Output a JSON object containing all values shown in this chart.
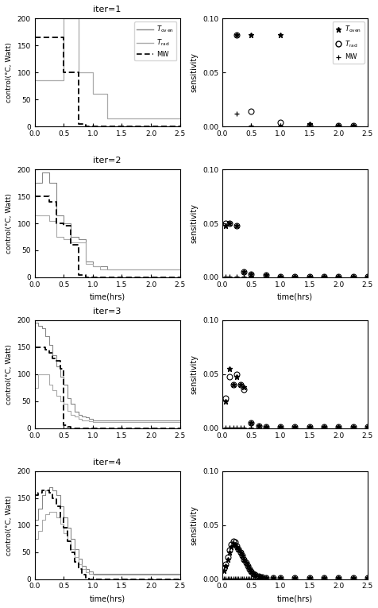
{
  "iter_titles": [
    "iter=1",
    "iter=2",
    "iter=3",
    "iter=4"
  ],
  "xlim_control": [
    0,
    2.5
  ],
  "ylim_control": [
    0,
    200
  ],
  "xlim_sens": [
    0,
    2.5
  ],
  "ylim_sens": [
    0,
    0.1
  ],
  "xlabel": "time(hrs)",
  "ylabel_control": "control(°C, Watt)",
  "ylabel_sens": "sensitivity",
  "yticks_sens": [
    0,
    0.05,
    0.1
  ],
  "yticks_control": [
    0,
    50,
    100,
    150,
    200
  ],
  "xticks": [
    0,
    0.5,
    1,
    1.5,
    2,
    2.5
  ],
  "iter1_toven_x": [
    0,
    0.5,
    0.5,
    0.75,
    0.75,
    1.0,
    1.0,
    1.25,
    1.25,
    2.5
  ],
  "iter1_toven_y": [
    85,
    85,
    200,
    200,
    100,
    100,
    60,
    60,
    15,
    15
  ],
  "iter1_trad_x": [
    0,
    0.5,
    0.5,
    0.75,
    0.75,
    1.0,
    1.0,
    1.25,
    1.25,
    2.5
  ],
  "iter1_trad_y": [
    85,
    85,
    200,
    200,
    100,
    100,
    60,
    60,
    15,
    15
  ],
  "iter1_mw_x": [
    0,
    0.5,
    0.5,
    0.75,
    0.75,
    0.875,
    0.875,
    2.5
  ],
  "iter1_mw_y": [
    165,
    165,
    100,
    100,
    5,
    5,
    0,
    0
  ],
  "iter2_toven_x": [
    0,
    0.125,
    0.125,
    0.25,
    0.25,
    0.375,
    0.375,
    0.5,
    0.5,
    0.625,
    0.625,
    0.75,
    0.75,
    0.875,
    0.875,
    1.0,
    1.0,
    1.125,
    1.125,
    1.25,
    1.25,
    2.5
  ],
  "iter2_toven_y": [
    175,
    175,
    195,
    195,
    175,
    175,
    115,
    115,
    100,
    100,
    75,
    75,
    70,
    70,
    30,
    30,
    20,
    20,
    20,
    20,
    15,
    15
  ],
  "iter2_trad_x": [
    0,
    0.125,
    0.125,
    0.25,
    0.25,
    0.375,
    0.375,
    0.5,
    0.5,
    0.625,
    0.625,
    0.75,
    0.75,
    0.875,
    0.875,
    1.0,
    1.0,
    1.125,
    1.125,
    1.25,
    1.25,
    2.5
  ],
  "iter2_trad_y": [
    115,
    115,
    115,
    115,
    105,
    105,
    75,
    75,
    70,
    70,
    65,
    65,
    65,
    65,
    25,
    25,
    20,
    20,
    15,
    15,
    15,
    15
  ],
  "iter2_mw_x": [
    0,
    0.125,
    0.125,
    0.25,
    0.25,
    0.375,
    0.375,
    0.5,
    0.5,
    0.625,
    0.625,
    0.75,
    0.75,
    0.875,
    0.875,
    2.5
  ],
  "iter2_mw_y": [
    150,
    150,
    150,
    150,
    140,
    140,
    100,
    100,
    95,
    95,
    60,
    60,
    5,
    5,
    0,
    0
  ],
  "iter3_toven_x": [
    0,
    0.0625,
    0.0625,
    0.125,
    0.125,
    0.1875,
    0.1875,
    0.25,
    0.25,
    0.3125,
    0.3125,
    0.375,
    0.375,
    0.4375,
    0.4375,
    0.5,
    0.5,
    0.5625,
    0.5625,
    0.625,
    0.625,
    0.6875,
    0.6875,
    0.75,
    0.75,
    0.8125,
    0.8125,
    0.875,
    0.875,
    0.9375,
    0.9375,
    1.0,
    1.0,
    2.5
  ],
  "iter3_toven_y": [
    195,
    195,
    190,
    190,
    185,
    185,
    170,
    170,
    155,
    155,
    135,
    135,
    115,
    115,
    95,
    95,
    80,
    80,
    55,
    55,
    45,
    45,
    30,
    30,
    25,
    25,
    22,
    22,
    20,
    20,
    18,
    18,
    15,
    15
  ],
  "iter3_trad_x": [
    0,
    0.0625,
    0.0625,
    0.125,
    0.125,
    0.1875,
    0.1875,
    0.25,
    0.25,
    0.3125,
    0.3125,
    0.375,
    0.375,
    0.4375,
    0.4375,
    0.5,
    0.5,
    0.5625,
    0.5625,
    0.625,
    0.625,
    0.6875,
    0.6875,
    0.75,
    0.75,
    0.8125,
    0.8125,
    0.875,
    0.875,
    0.9375,
    0.9375,
    1.0,
    1.0,
    2.5
  ],
  "iter3_trad_y": [
    75,
    75,
    100,
    100,
    100,
    100,
    100,
    100,
    80,
    80,
    70,
    70,
    60,
    60,
    50,
    50,
    45,
    45,
    32,
    32,
    25,
    25,
    22,
    22,
    18,
    18,
    15,
    15,
    14,
    14,
    13,
    13,
    12,
    12
  ],
  "iter3_mw_x": [
    0,
    0.0625,
    0.0625,
    0.125,
    0.125,
    0.1875,
    0.1875,
    0.25,
    0.25,
    0.3125,
    0.3125,
    0.375,
    0.375,
    0.4375,
    0.4375,
    0.5,
    0.5,
    0.5625,
    0.5625,
    0.625,
    0.625,
    0.6875,
    0.6875,
    0.75,
    0.75,
    0.8125,
    0.8125,
    2.5
  ],
  "iter3_mw_y": [
    150,
    150,
    150,
    150,
    150,
    150,
    145,
    145,
    140,
    140,
    130,
    130,
    125,
    125,
    110,
    110,
    5,
    5,
    2,
    2,
    0,
    0,
    0,
    0,
    0,
    0,
    0,
    0
  ],
  "iter4_toven_x": [
    0,
    0.0625,
    0.0625,
    0.125,
    0.125,
    0.1875,
    0.1875,
    0.25,
    0.25,
    0.3125,
    0.3125,
    0.375,
    0.375,
    0.4375,
    0.4375,
    0.5,
    0.5,
    0.5625,
    0.5625,
    0.625,
    0.625,
    0.6875,
    0.6875,
    0.75,
    0.75,
    0.8125,
    0.8125,
    0.875,
    0.875,
    0.9375,
    0.9375,
    1.0,
    1.0,
    2.5
  ],
  "iter4_toven_y": [
    110,
    110,
    130,
    130,
    155,
    155,
    165,
    165,
    170,
    170,
    165,
    165,
    155,
    155,
    135,
    135,
    115,
    115,
    95,
    95,
    75,
    75,
    55,
    55,
    38,
    38,
    25,
    25,
    18,
    18,
    14,
    14,
    10,
    10
  ],
  "iter4_trad_x": [
    0,
    0.0625,
    0.0625,
    0.125,
    0.125,
    0.1875,
    0.1875,
    0.25,
    0.25,
    0.3125,
    0.3125,
    0.375,
    0.375,
    0.4375,
    0.4375,
    0.5,
    0.5,
    0.5625,
    0.5625,
    0.625,
    0.625,
    0.6875,
    0.6875,
    0.75,
    0.75,
    0.8125,
    0.8125,
    0.875,
    0.875,
    0.9375,
    0.9375,
    1.0,
    1.0,
    2.5
  ],
  "iter4_trad_y": [
    75,
    75,
    90,
    90,
    110,
    110,
    120,
    120,
    125,
    125,
    125,
    125,
    115,
    115,
    102,
    102,
    85,
    85,
    70,
    70,
    55,
    55,
    40,
    40,
    28,
    28,
    18,
    18,
    12,
    12,
    10,
    10,
    8,
    8
  ],
  "iter4_mw_x": [
    0,
    0.0625,
    0.0625,
    0.125,
    0.125,
    0.1875,
    0.1875,
    0.25,
    0.25,
    0.3125,
    0.3125,
    0.375,
    0.375,
    0.4375,
    0.4375,
    0.5,
    0.5,
    0.5625,
    0.5625,
    0.625,
    0.625,
    0.6875,
    0.6875,
    0.75,
    0.75,
    0.8125,
    0.8125,
    0.875,
    0.875,
    0.9375,
    0.9375,
    1.0,
    1.0,
    2.5
  ],
  "iter4_mw_y": [
    155,
    155,
    160,
    160,
    165,
    165,
    165,
    165,
    160,
    160,
    150,
    150,
    135,
    135,
    115,
    115,
    95,
    95,
    70,
    70,
    50,
    50,
    32,
    32,
    18,
    18,
    8,
    8,
    2,
    2,
    0,
    0,
    0,
    0
  ],
  "sens1_toven_x": [
    0.25,
    0.5,
    1.0,
    1.5,
    2.0,
    2.25
  ],
  "sens1_toven_y": [
    0.085,
    0.085,
    0.085,
    0.002,
    0.001,
    0.001
  ],
  "sens1_trad_x": [
    0.25,
    0.5,
    1.0,
    1.5,
    2.0,
    2.25
  ],
  "sens1_trad_y": [
    0.085,
    0.014,
    0.004,
    0.001,
    0.001,
    0.001
  ],
  "sens1_mw_x": [
    0.25,
    0.5,
    1.0,
    1.5,
    2.0,
    2.25
  ],
  "sens1_mw_y": [
    0.012,
    0.001,
    0.001,
    0.0005,
    0.0002,
    0.0001
  ],
  "sens2_toven_x": [
    0.0625,
    0.125,
    0.25,
    0.375,
    0.5,
    0.75,
    1.0,
    1.25,
    1.5,
    1.75,
    2.0,
    2.25,
    2.5
  ],
  "sens2_toven_y": [
    0.048,
    0.05,
    0.048,
    0.005,
    0.003,
    0.002,
    0.001,
    0.001,
    0.001,
    0.001,
    0.001,
    0.001,
    0.001
  ],
  "sens2_trad_x": [
    0.0625,
    0.125,
    0.25,
    0.375,
    0.5,
    0.75,
    1.0,
    1.25,
    1.5,
    1.75,
    2.0,
    2.25,
    2.5
  ],
  "sens2_trad_y": [
    0.05,
    0.05,
    0.048,
    0.005,
    0.003,
    0.002,
    0.001,
    0.001,
    0.001,
    0.001,
    0.001,
    0.001,
    0.001
  ],
  "sens2_mw_x": [
    0.0625,
    0.125,
    0.25,
    0.375,
    0.5,
    0.75,
    1.0,
    1.25,
    1.5,
    1.75,
    2.0,
    2.25,
    2.5
  ],
  "sens2_mw_y": [
    0.001,
    0.001,
    0.001,
    0.001,
    0.001,
    0.001,
    0.001,
    0.001,
    0.001,
    0.001,
    0.001,
    0.001,
    0.001
  ],
  "sens3_toven_x": [
    0.0625,
    0.125,
    0.1875,
    0.25,
    0.3125,
    0.375,
    0.5,
    0.625,
    0.75,
    1.0,
    1.25,
    1.5,
    1.75,
    2.0,
    2.25,
    2.5
  ],
  "sens3_toven_y": [
    0.025,
    0.055,
    0.04,
    0.048,
    0.04,
    0.038,
    0.005,
    0.002,
    0.001,
    0.001,
    0.001,
    0.001,
    0.001,
    0.001,
    0.001,
    0.001
  ],
  "sens3_trad_x": [
    0.0625,
    0.125,
    0.1875,
    0.25,
    0.3125,
    0.375,
    0.5,
    0.625,
    0.75,
    1.0,
    1.25,
    1.5,
    1.75,
    2.0,
    2.25,
    2.5
  ],
  "sens3_trad_y": [
    0.028,
    0.048,
    0.04,
    0.05,
    0.04,
    0.036,
    0.005,
    0.002,
    0.001,
    0.001,
    0.001,
    0.001,
    0.001,
    0.001,
    0.001,
    0.001
  ],
  "sens3_mw_x": [
    0.0625,
    0.125,
    0.1875,
    0.25,
    0.3125,
    0.375,
    0.5,
    0.625,
    0.75,
    1.0,
    1.25,
    1.5,
    1.75,
    2.0,
    2.25,
    2.5
  ],
  "sens3_mw_y": [
    0.0005,
    0.0005,
    0.0005,
    0.0005,
    0.0005,
    0.0005,
    0.0005,
    0.0005,
    0.0005,
    0.0005,
    0.0005,
    0.0005,
    0.0005,
    0.0005,
    0.0005,
    0.0005
  ],
  "sens4_toven_x": [
    0.03125,
    0.0625,
    0.09375,
    0.125,
    0.15625,
    0.1875,
    0.21875,
    0.25,
    0.28125,
    0.3125,
    0.34375,
    0.375,
    0.40625,
    0.4375,
    0.46875,
    0.5,
    0.53125,
    0.5625,
    0.625,
    0.6875,
    0.75,
    0.875,
    1.0,
    1.25,
    1.5,
    1.75,
    2.0,
    2.25,
    2.5
  ],
  "sens4_toven_y": [
    0.008,
    0.012,
    0.018,
    0.025,
    0.03,
    0.033,
    0.032,
    0.03,
    0.028,
    0.025,
    0.022,
    0.018,
    0.015,
    0.012,
    0.009,
    0.007,
    0.005,
    0.004,
    0.003,
    0.002,
    0.001,
    0.001,
    0.001,
    0.001,
    0.001,
    0.001,
    0.001,
    0.001,
    0.001
  ],
  "sens4_trad_x": [
    0.03125,
    0.0625,
    0.09375,
    0.125,
    0.15625,
    0.1875,
    0.21875,
    0.25,
    0.28125,
    0.3125,
    0.34375,
    0.375,
    0.40625,
    0.4375,
    0.46875,
    0.5,
    0.53125,
    0.5625,
    0.625,
    0.6875,
    0.75,
    0.875,
    1.0,
    1.25,
    1.5,
    1.75,
    2.0,
    2.25,
    2.5
  ],
  "sens4_trad_y": [
    0.01,
    0.014,
    0.02,
    0.027,
    0.032,
    0.035,
    0.034,
    0.031,
    0.028,
    0.025,
    0.022,
    0.018,
    0.015,
    0.012,
    0.009,
    0.007,
    0.005,
    0.004,
    0.003,
    0.002,
    0.001,
    0.001,
    0.001,
    0.001,
    0.001,
    0.001,
    0.001,
    0.001,
    0.001
  ],
  "sens4_mw_x": [
    0.03125,
    0.0625,
    0.09375,
    0.125,
    0.15625,
    0.1875,
    0.21875,
    0.25,
    0.28125,
    0.3125,
    0.34375,
    0.375,
    0.40625,
    0.4375,
    0.46875,
    0.5,
    0.53125,
    0.5625,
    0.625,
    0.6875,
    0.75,
    0.875,
    1.0,
    1.25,
    1.5,
    1.75,
    2.0,
    2.25,
    2.5
  ],
  "sens4_mw_y": [
    0.0005,
    0.0005,
    0.0005,
    0.0005,
    0.0005,
    0.0005,
    0.0005,
    0.0005,
    0.0005,
    0.0005,
    0.0005,
    0.0005,
    0.0005,
    0.0005,
    0.0005,
    0.0005,
    0.0005,
    0.0005,
    0.0005,
    0.0005,
    0.0005,
    0.0005,
    0.0005,
    0.0005,
    0.0005,
    0.0005,
    0.0005,
    0.0005,
    0.0005
  ],
  "color_toven": "#888888",
  "color_trad": "#aaaaaa",
  "color_mw": "#000000"
}
